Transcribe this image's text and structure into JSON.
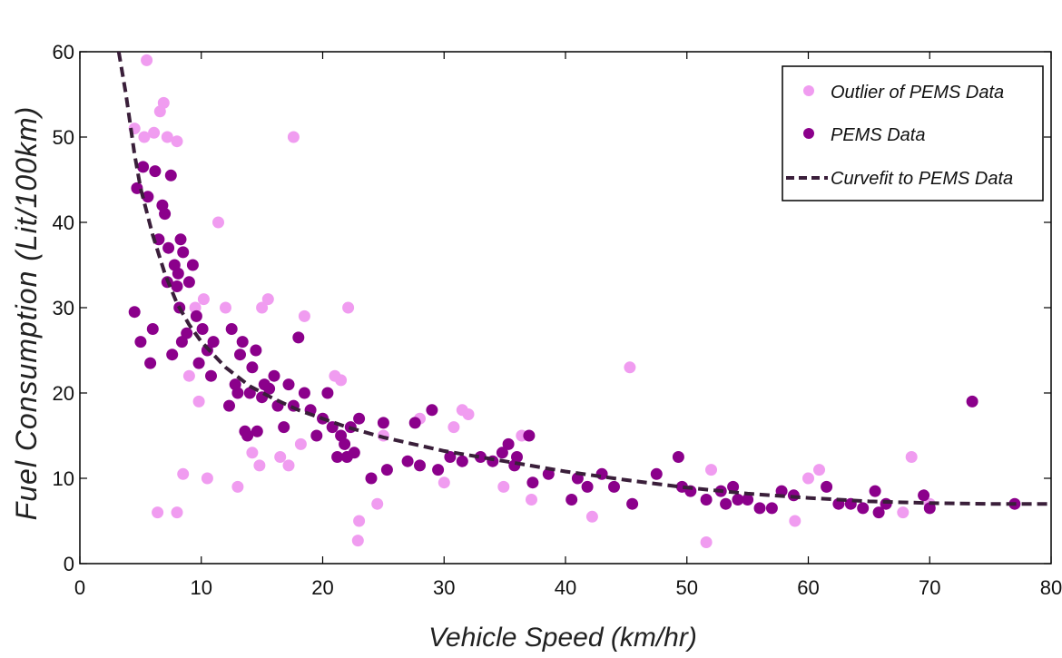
{
  "chart_data": {
    "type": "scatter",
    "title": "",
    "xlabel": "Vehicle Speed (km/hr)",
    "ylabel": "Fuel Consumption (Lit/100km)",
    "xlim": [
      0,
      80
    ],
    "ylim": [
      0,
      60
    ],
    "x_ticks": [
      0,
      10,
      20,
      30,
      40,
      50,
      60,
      70,
      80
    ],
    "y_ticks": [
      0,
      10,
      20,
      30,
      40,
      50,
      60
    ],
    "grid": false,
    "legend_position": "top-right",
    "series": [
      {
        "name": "Outlier of PEMS Data",
        "kind": "scatter",
        "color": "#f09cf0",
        "points": [
          [
            5.5,
            59
          ],
          [
            4.5,
            51
          ],
          [
            5.3,
            50
          ],
          [
            6.1,
            50.5
          ],
          [
            6.6,
            53
          ],
          [
            6.9,
            54
          ],
          [
            7.2,
            50
          ],
          [
            8.0,
            49.5
          ],
          [
            6.4,
            6
          ],
          [
            8.0,
            6
          ],
          [
            8.5,
            10.5
          ],
          [
            11.4,
            40
          ],
          [
            9.5,
            30
          ],
          [
            10.2,
            31
          ],
          [
            9.0,
            22
          ],
          [
            9.8,
            19
          ],
          [
            10.5,
            10
          ],
          [
            12.0,
            30
          ],
          [
            13.0,
            9
          ],
          [
            14.2,
            13
          ],
          [
            14.8,
            11.5
          ],
          [
            15.0,
            30
          ],
          [
            15.5,
            31
          ],
          [
            16.5,
            12.5
          ],
          [
            17.2,
            11.5
          ],
          [
            17.6,
            50
          ],
          [
            18.5,
            29
          ],
          [
            18.2,
            14
          ],
          [
            21.0,
            22
          ],
          [
            21.5,
            21.5
          ],
          [
            22.1,
            30
          ],
          [
            23.0,
            5
          ],
          [
            22.9,
            2.7
          ],
          [
            24.5,
            7
          ],
          [
            25.0,
            15
          ],
          [
            28.0,
            17
          ],
          [
            30.0,
            9.5
          ],
          [
            30.8,
            16
          ],
          [
            31.5,
            18
          ],
          [
            32.0,
            17.5
          ],
          [
            34.9,
            9
          ],
          [
            36.4,
            15
          ],
          [
            37.2,
            7.5
          ],
          [
            42.2,
            5.5
          ],
          [
            45.3,
            23
          ],
          [
            51.6,
            2.5
          ],
          [
            52.0,
            11
          ],
          [
            58.9,
            5
          ],
          [
            60.0,
            10
          ],
          [
            60.9,
            11
          ],
          [
            67.8,
            6
          ],
          [
            68.5,
            12.5
          ],
          [
            70.0,
            7
          ]
        ]
      },
      {
        "name": "PEMS Data",
        "kind": "scatter",
        "color": "#8b008b",
        "points": [
          [
            4.5,
            29.5
          ],
          [
            4.7,
            44
          ],
          [
            5.2,
            46.5
          ],
          [
            5.6,
            43
          ],
          [
            5.0,
            26
          ],
          [
            5.8,
            23.5
          ],
          [
            6.2,
            46
          ],
          [
            6.0,
            27.5
          ],
          [
            6.5,
            38
          ],
          [
            6.8,
            42
          ],
          [
            7.0,
            41
          ],
          [
            7.3,
            37
          ],
          [
            7.5,
            45.5
          ],
          [
            7.2,
            33
          ],
          [
            7.8,
            35
          ],
          [
            8.1,
            34
          ],
          [
            8.3,
            38
          ],
          [
            8.5,
            36.5
          ],
          [
            8.0,
            32.5
          ],
          [
            8.2,
            30
          ],
          [
            7.6,
            24.5
          ],
          [
            8.4,
            26
          ],
          [
            8.8,
            27
          ],
          [
            9.0,
            33
          ],
          [
            9.3,
            35
          ],
          [
            9.6,
            29
          ],
          [
            9.8,
            23.5
          ],
          [
            10.1,
            27.5
          ],
          [
            10.5,
            25
          ],
          [
            11.0,
            26
          ],
          [
            10.8,
            22
          ],
          [
            12.3,
            18.5
          ],
          [
            12.5,
            27.5
          ],
          [
            12.8,
            21
          ],
          [
            13.0,
            20
          ],
          [
            13.2,
            24.5
          ],
          [
            13.4,
            26
          ],
          [
            13.6,
            15.5
          ],
          [
            13.8,
            15
          ],
          [
            14.0,
            20
          ],
          [
            14.2,
            23
          ],
          [
            14.5,
            25
          ],
          [
            14.6,
            15.5
          ],
          [
            15.0,
            19.5
          ],
          [
            15.2,
            21
          ],
          [
            15.6,
            20.5
          ],
          [
            16.0,
            22
          ],
          [
            16.3,
            18.5
          ],
          [
            16.8,
            16
          ],
          [
            17.2,
            21
          ],
          [
            17.6,
            18.5
          ],
          [
            18.0,
            26.5
          ],
          [
            18.5,
            20
          ],
          [
            19.0,
            18
          ],
          [
            19.5,
            15
          ],
          [
            20.0,
            17
          ],
          [
            20.4,
            20
          ],
          [
            20.8,
            16
          ],
          [
            21.2,
            12.5
          ],
          [
            21.5,
            15
          ],
          [
            21.8,
            14
          ],
          [
            22.0,
            12.5
          ],
          [
            22.3,
            16
          ],
          [
            22.6,
            13
          ],
          [
            23.0,
            17
          ],
          [
            24.0,
            10
          ],
          [
            25.0,
            16.5
          ],
          [
            25.3,
            11
          ],
          [
            27.0,
            12
          ],
          [
            27.6,
            16.5
          ],
          [
            28.0,
            11.5
          ],
          [
            29.0,
            18
          ],
          [
            29.5,
            11
          ],
          [
            30.5,
            12.5
          ],
          [
            31.5,
            12
          ],
          [
            33.0,
            12.5
          ],
          [
            34.0,
            12
          ],
          [
            34.8,
            13
          ],
          [
            35.3,
            14
          ],
          [
            35.8,
            11.5
          ],
          [
            36.0,
            12.5
          ],
          [
            37.0,
            15
          ],
          [
            37.3,
            9.5
          ],
          [
            38.6,
            10.5
          ],
          [
            40.5,
            7.5
          ],
          [
            41.0,
            10
          ],
          [
            41.8,
            9
          ],
          [
            43.0,
            10.5
          ],
          [
            44.0,
            9
          ],
          [
            45.5,
            7
          ],
          [
            47.5,
            10.5
          ],
          [
            49.3,
            12.5
          ],
          [
            49.6,
            9
          ],
          [
            50.3,
            8.5
          ],
          [
            51.6,
            7.5
          ],
          [
            52.8,
            8.5
          ],
          [
            53.2,
            7
          ],
          [
            53.8,
            9
          ],
          [
            54.2,
            7.5
          ],
          [
            55.0,
            7.5
          ],
          [
            56.0,
            6.5
          ],
          [
            57.0,
            6.5
          ],
          [
            57.8,
            8.5
          ],
          [
            58.8,
            8
          ],
          [
            61.5,
            9
          ],
          [
            62.5,
            7
          ],
          [
            63.5,
            7
          ],
          [
            64.5,
            6.5
          ],
          [
            65.5,
            8.5
          ],
          [
            65.8,
            6
          ],
          [
            66.4,
            7
          ],
          [
            69.5,
            8
          ],
          [
            70.0,
            6.5
          ],
          [
            73.5,
            19
          ],
          [
            77.0,
            7
          ]
        ]
      },
      {
        "name": "Curvefit to PEMS Data",
        "kind": "line",
        "dash": true,
        "color": "#3a1f3a",
        "points": [
          [
            3.2,
            60
          ],
          [
            3.8,
            55
          ],
          [
            4.5,
            48
          ],
          [
            5.0,
            44
          ],
          [
            6.0,
            38.5
          ],
          [
            7.0,
            34
          ],
          [
            8.0,
            30.5
          ],
          [
            9.0,
            28
          ],
          [
            10.0,
            26
          ],
          [
            12.0,
            23
          ],
          [
            14.0,
            20.8
          ],
          [
            16.0,
            19.3
          ],
          [
            18.0,
            18
          ],
          [
            20.0,
            17
          ],
          [
            22.0,
            16
          ],
          [
            25.0,
            14.8
          ],
          [
            30.0,
            13.2
          ],
          [
            35.0,
            12
          ],
          [
            40.0,
            10.8
          ],
          [
            45.0,
            9.8
          ],
          [
            50.0,
            8.9
          ],
          [
            55.0,
            8.2
          ],
          [
            60.0,
            7.7
          ],
          [
            65.0,
            7.3
          ],
          [
            70.0,
            7.1
          ],
          [
            75.0,
            7.0
          ],
          [
            80.0,
            7.0
          ]
        ]
      }
    ]
  }
}
